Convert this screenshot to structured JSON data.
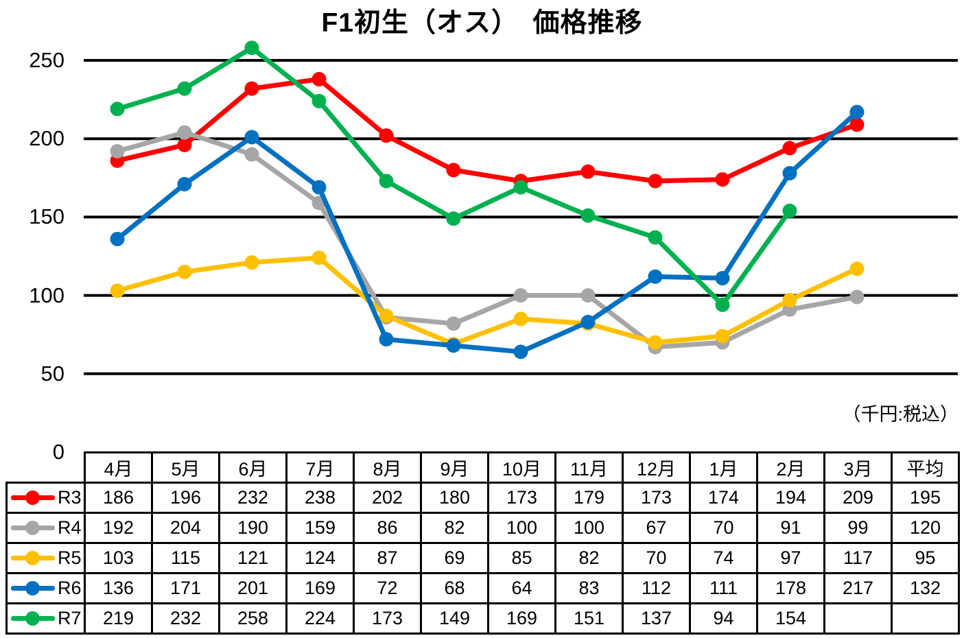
{
  "title": "F1初生（オス）　価格推移",
  "unit_note": "（千円:税込）",
  "chart_data": {
    "type": "line",
    "x_categories": [
      "4月",
      "5月",
      "6月",
      "7月",
      "8月",
      "9月",
      "10月",
      "11月",
      "12月",
      "1月",
      "2月",
      "3月"
    ],
    "average_label": "平均",
    "y_ticks": [
      250,
      200,
      150,
      100,
      50,
      0
    ],
    "ylim": [
      0,
      263
    ],
    "grid": true,
    "grid_color": "#000000",
    "legend_position": "table-left-column",
    "series": [
      {
        "name": "R3",
        "color": "#FF0000",
        "values": [
          186,
          196,
          232,
          238,
          202,
          180,
          173,
          179,
          173,
          174,
          194,
          209
        ],
        "average": 195
      },
      {
        "name": "R4",
        "color": "#A6A6A6",
        "values": [
          192,
          204,
          190,
          159,
          86,
          82,
          100,
          100,
          67,
          70,
          91,
          99
        ],
        "average": 120
      },
      {
        "name": "R5",
        "color": "#FFC000",
        "values": [
          103,
          115,
          121,
          124,
          87,
          69,
          85,
          82,
          70,
          74,
          97,
          117
        ],
        "average": 95
      },
      {
        "name": "R6",
        "color": "#0070C0",
        "values": [
          136,
          171,
          201,
          169,
          72,
          68,
          64,
          83,
          112,
          111,
          178,
          217
        ],
        "average": 132
      },
      {
        "name": "R7",
        "color": "#00B050",
        "values": [
          219,
          232,
          258,
          224,
          173,
          149,
          169,
          151,
          137,
          94,
          154,
          null
        ],
        "average": null
      }
    ]
  }
}
